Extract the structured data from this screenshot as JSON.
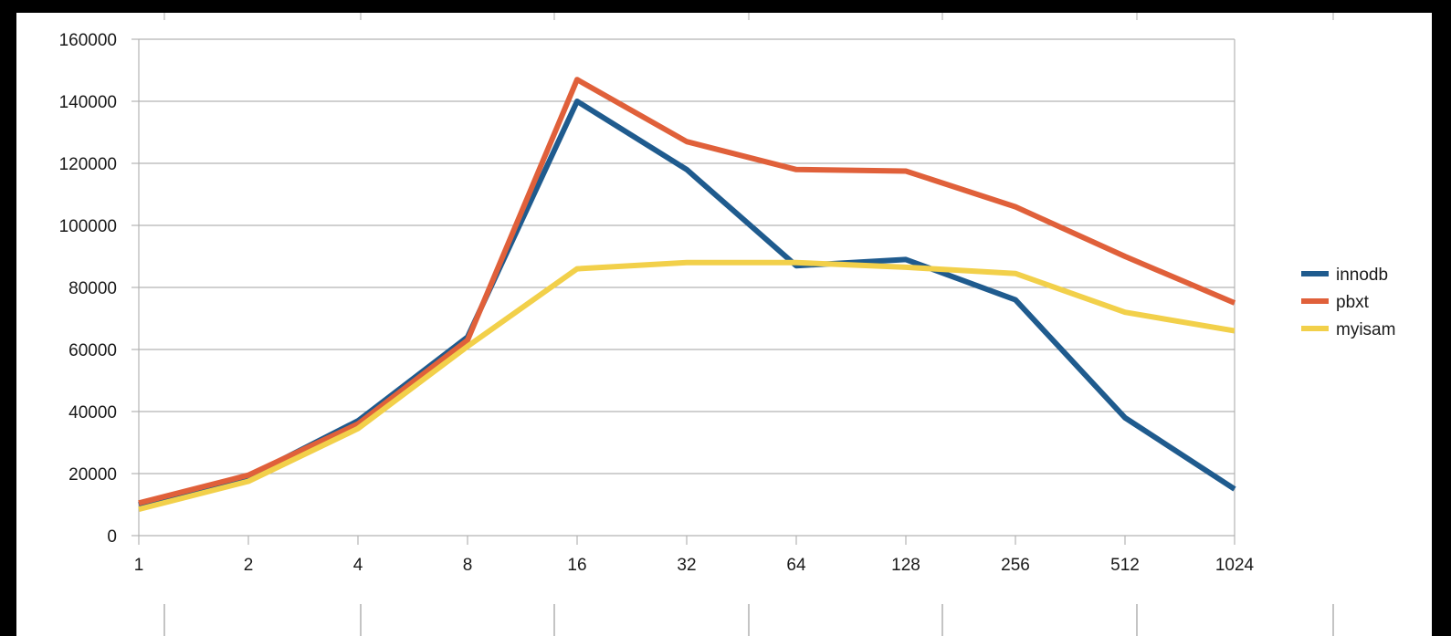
{
  "chart_data": {
    "type": "line",
    "title": "",
    "xlabel": "",
    "ylabel": "",
    "categories": [
      "1",
      "2",
      "4",
      "8",
      "16",
      "32",
      "64",
      "128",
      "256",
      "512",
      "1024"
    ],
    "ylim": [
      0,
      160000
    ],
    "yticks": [
      "0",
      "20000",
      "40000",
      "60000",
      "80000",
      "100000",
      "120000",
      "140000",
      "160000"
    ],
    "grid": "horizontal",
    "legend_position": "right",
    "series": [
      {
        "name": "innodb",
        "color": "#1f5b8e",
        "values": [
          10000,
          19000,
          37000,
          64000,
          140000,
          118000,
          87000,
          89000,
          76000,
          38000,
          15000
        ]
      },
      {
        "name": "pbxt",
        "color": "#e0603a",
        "values": [
          10500,
          19500,
          36000,
          63000,
          147000,
          127000,
          118000,
          117500,
          106000,
          90000,
          75000
        ]
      },
      {
        "name": "myisam",
        "color": "#f2d04a",
        "values": [
          8500,
          17500,
          34500,
          61000,
          86000,
          88000,
          88000,
          86500,
          84500,
          72000,
          66000
        ]
      }
    ]
  }
}
